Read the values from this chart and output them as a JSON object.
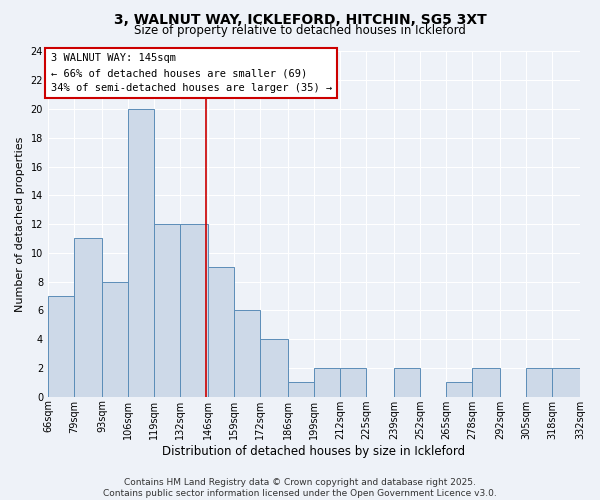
{
  "title": "3, WALNUT WAY, ICKLEFORD, HITCHIN, SG5 3XT",
  "subtitle": "Size of property relative to detached houses in Ickleford",
  "xlabel": "Distribution of detached houses by size in Ickleford",
  "ylabel": "Number of detached properties",
  "bins": [
    66,
    79,
    93,
    106,
    119,
    132,
    146,
    159,
    172,
    186,
    199,
    212,
    225,
    239,
    252,
    265,
    278,
    292,
    305,
    318,
    332
  ],
  "counts": [
    7,
    11,
    8,
    20,
    12,
    12,
    9,
    6,
    4,
    1,
    2,
    2,
    0,
    2,
    0,
    1,
    2,
    0,
    2,
    2
  ],
  "bar_facecolor": "#cdd9e8",
  "bar_edgecolor": "#5b8db8",
  "vline_x": 145,
  "vline_color": "#cc0000",
  "annotation_line1": "3 WALNUT WAY: 145sqm",
  "annotation_line2": "← 66% of detached houses are smaller (69)",
  "annotation_line3": "34% of semi-detached houses are larger (35) →",
  "annotation_box_facecolor": "#ffffff",
  "annotation_box_edgecolor": "#cc0000",
  "ylim": [
    0,
    24
  ],
  "yticks": [
    0,
    2,
    4,
    6,
    8,
    10,
    12,
    14,
    16,
    18,
    20,
    22,
    24
  ],
  "tick_labels": [
    "66sqm",
    "79sqm",
    "93sqm",
    "106sqm",
    "119sqm",
    "132sqm",
    "146sqm",
    "159sqm",
    "172sqm",
    "186sqm",
    "199sqm",
    "212sqm",
    "225sqm",
    "239sqm",
    "252sqm",
    "265sqm",
    "278sqm",
    "292sqm",
    "305sqm",
    "318sqm",
    "332sqm"
  ],
  "bg_color": "#eef2f8",
  "plot_bg_color": "#eef2f8",
  "grid_color": "#ffffff",
  "footer_text": "Contains HM Land Registry data © Crown copyright and database right 2025.\nContains public sector information licensed under the Open Government Licence v3.0.",
  "title_fontsize": 10,
  "subtitle_fontsize": 8.5,
  "xlabel_fontsize": 8.5,
  "ylabel_fontsize": 8,
  "tick_fontsize": 7,
  "footer_fontsize": 6.5,
  "annotation_fontsize": 7.5
}
